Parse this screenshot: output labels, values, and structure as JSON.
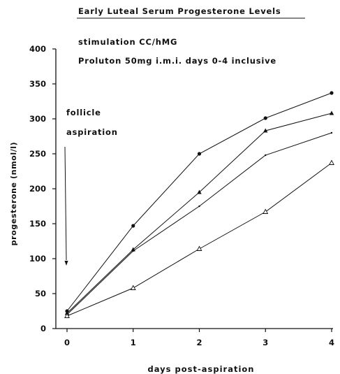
{
  "chart_data": {
    "type": "line",
    "title": "Early Luteal Serum Progesterone Levels",
    "subtitle_lines": [
      "stimulation CC/hMG",
      "Proluton 50mg i.m.i. days 0-4 inclusive"
    ],
    "xlabel": "days post-aspiration",
    "ylabel": "progesterone (nmol/l)",
    "x": [
      0,
      1,
      2,
      3,
      4
    ],
    "xticks": [
      "0",
      "1",
      "2",
      "3",
      "4"
    ],
    "yticks": [
      "0",
      "50",
      "100",
      "150",
      "200",
      "250",
      "300",
      "350",
      "400"
    ],
    "xlim": [
      0,
      4
    ],
    "ylim": [
      0,
      400
    ],
    "grid": false,
    "series": [
      {
        "marker": "filled-circle",
        "values": [
          25,
          147,
          250,
          301,
          337
        ]
      },
      {
        "marker": "filled-triangle",
        "values": [
          22,
          113,
          195,
          283,
          308
        ]
      },
      {
        "marker": "small-tick",
        "values": [
          20,
          111,
          175,
          248,
          280
        ]
      },
      {
        "marker": "open-triangle",
        "values": [
          18,
          58,
          114,
          167,
          237
        ]
      }
    ],
    "annotation": {
      "lines": [
        "follicle",
        "aspiration"
      ],
      "x": 0,
      "y": 100
    },
    "colors": {
      "ink": "#111111",
      "background": "#ffffff"
    }
  }
}
